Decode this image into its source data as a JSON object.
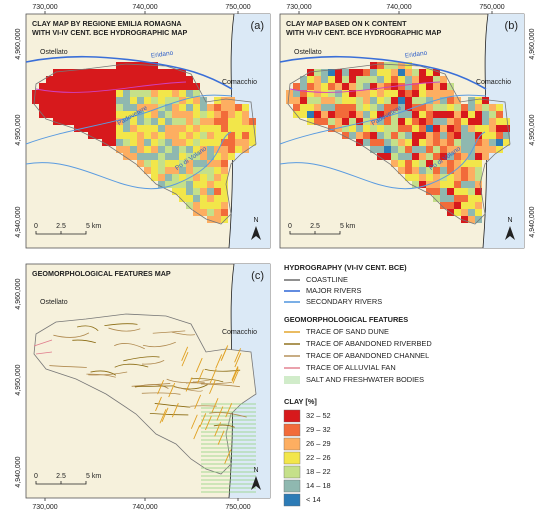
{
  "panels": [
    {
      "label": "(a)",
      "title": [
        "CLAY MAP BY REGIONE EMILIA ROMAGNA",
        "WITH VI-IV CENT. BCE HYDROGRAPHIC MAP"
      ],
      "x_ticks": [
        "730,000",
        "740,000",
        "750,000"
      ],
      "y_ticks": [
        "4,960,000",
        "4,950,000",
        "4,940,000"
      ],
      "places": [
        "Ostellato",
        "Comacchio"
      ],
      "rivers": [
        "Eridano",
        "Padovetere",
        "Po di Volano"
      ],
      "scale": [
        "0",
        "2.5",
        "5 km"
      ],
      "north": "N"
    },
    {
      "label": "(b)",
      "title": [
        "CLAY MAP BASED ON K CONTENT",
        "WITH VI-IV CENT. BCE HYDROGRAPHIC MAP"
      ],
      "x_ticks": [
        "730,000",
        "740,000",
        "750,000"
      ],
      "y_ticks": [
        "4,960,000",
        "4,950,000",
        "4,940,000"
      ],
      "places": [
        "Ostellato",
        "Comacchio"
      ],
      "rivers": [
        "Eridano",
        "Padovetere",
        "Po di Volano"
      ],
      "scale": [
        "0",
        "2.5",
        "5 km"
      ],
      "north": "N"
    },
    {
      "label": "(c)",
      "title": [
        "GEOMORPHOLOGICAL FEATURES MAP"
      ],
      "x_ticks": [
        "730,000",
        "740,000",
        "750,000"
      ],
      "y_ticks": [
        "4,960,000",
        "4,950,000",
        "4,940,000"
      ],
      "places": [
        "Ostellato",
        "Comacchio"
      ],
      "scale": [
        "0",
        "2.5",
        "5 km"
      ],
      "north": "N"
    }
  ],
  "legend": {
    "hydrography": {
      "title": "HYDROGRAPHY (VI-IV CENT. BCE)",
      "items": [
        {
          "label": "COASTLINE",
          "color": "#222222"
        },
        {
          "label": "MAJOR RIVERS",
          "color": "#3a6fd8"
        },
        {
          "label": "SECONDARY RIVERS",
          "color": "#5a9be0"
        }
      ]
    },
    "geomorphology": {
      "title": "GEOMORPHOLOGICAL FEATURES",
      "items": [
        {
          "label": "TRACE OF SAND DUNE",
          "color": "#e0a020"
        },
        {
          "label": "TRACE OF ABANDONED RIVERBED",
          "color": "#8a6a10"
        },
        {
          "label": "TRACE OF ABANDONED CHANNEL",
          "color": "#b08a50"
        },
        {
          "label": "TRACE OF ALLUVIAL FAN",
          "color": "#e07a8a"
        },
        {
          "label": "SALT AND FRESHWATER BODIES",
          "color": "#8cd07a"
        }
      ]
    },
    "clay": {
      "title": "CLAY [%]",
      "classes": [
        {
          "label": "32 – 52",
          "color": "#d7191c"
        },
        {
          "label": "29 – 32",
          "color": "#f26b3a"
        },
        {
          "label": "26 – 29",
          "color": "#fdae61"
        },
        {
          "label": "22 – 26",
          "color": "#f2e64a"
        },
        {
          "label": "18 – 22",
          "color": "#c5e08a"
        },
        {
          "label": "14 – 18",
          "color": "#8fb8b0"
        },
        {
          "label": "< 14",
          "color": "#2c7bb6"
        }
      ]
    }
  }
}
